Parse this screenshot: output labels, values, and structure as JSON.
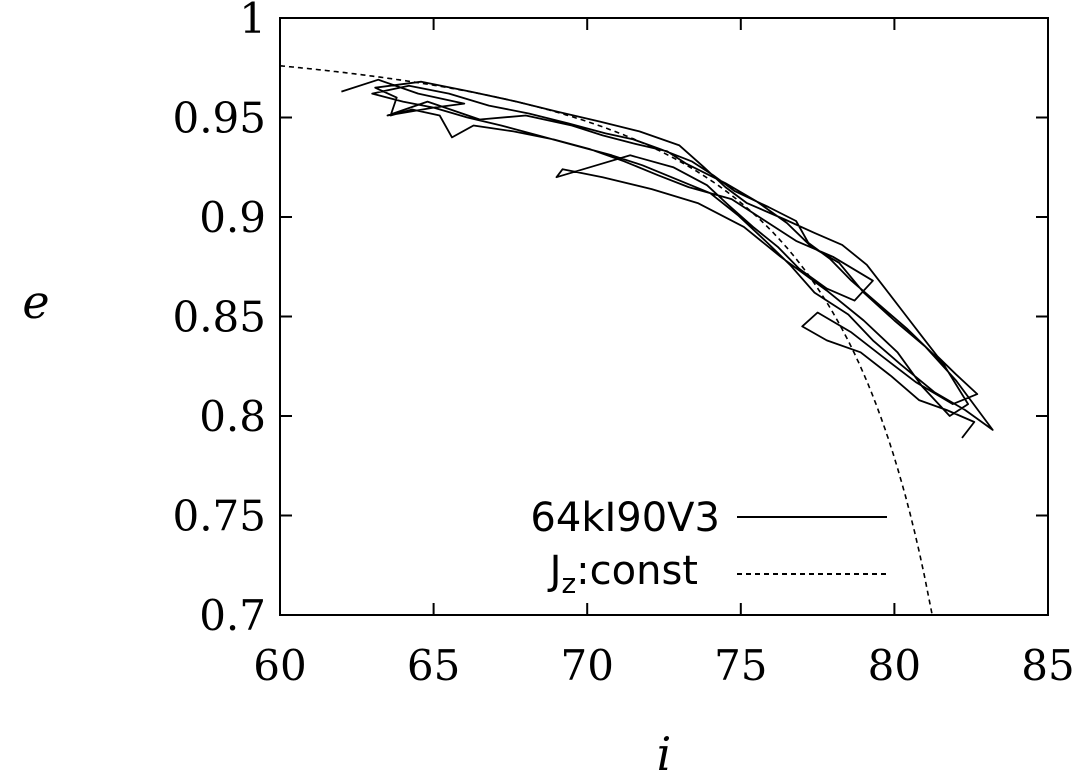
{
  "chart_data": {
    "type": "line",
    "xlabel": "i",
    "ylabel": "e",
    "xlim": [
      60,
      85
    ],
    "ylim": [
      0.7,
      1.0
    ],
    "xticks": [
      "60",
      "65",
      "70",
      "75",
      "80",
      "85"
    ],
    "yticks": [
      "0.7",
      "0.75",
      "0.8",
      "0.85",
      "0.9",
      "0.95",
      "1"
    ],
    "grid": false,
    "legend_position": "bottom-right",
    "series": [
      {
        "name": "64kI90V3",
        "style": "solid",
        "color": "#000000",
        "points": [
          [
            62.0,
            0.963
          ],
          [
            63.2,
            0.969
          ],
          [
            64.5,
            0.962
          ],
          [
            66.0,
            0.957
          ],
          [
            65.0,
            0.955
          ],
          [
            63.5,
            0.951
          ],
          [
            64.8,
            0.958
          ],
          [
            66.5,
            0.949
          ],
          [
            68.0,
            0.951
          ],
          [
            69.5,
            0.946
          ],
          [
            70.5,
            0.941
          ],
          [
            71.5,
            0.937
          ],
          [
            72.6,
            0.933
          ],
          [
            73.2,
            0.927
          ],
          [
            74.5,
            0.917
          ],
          [
            75.5,
            0.908
          ],
          [
            76.5,
            0.897
          ],
          [
            77.3,
            0.885
          ],
          [
            78.2,
            0.877
          ],
          [
            79.0,
            0.862
          ],
          [
            80.0,
            0.848
          ],
          [
            81.0,
            0.835
          ],
          [
            82.0,
            0.818
          ],
          [
            83.2,
            0.793
          ],
          [
            82.3,
            0.803
          ],
          [
            81.3,
            0.812
          ],
          [
            80.2,
            0.826
          ],
          [
            79.3,
            0.838
          ],
          [
            78.5,
            0.851
          ],
          [
            77.4,
            0.862
          ],
          [
            76.6,
            0.876
          ],
          [
            75.8,
            0.888
          ],
          [
            74.9,
            0.901
          ],
          [
            74.0,
            0.912
          ],
          [
            72.9,
            0.919
          ],
          [
            71.8,
            0.926
          ],
          [
            70.8,
            0.931
          ],
          [
            69.6,
            0.936
          ],
          [
            68.4,
            0.941
          ],
          [
            67.2,
            0.946
          ],
          [
            66.1,
            0.95
          ],
          [
            65.0,
            0.955
          ],
          [
            64.0,
            0.958
          ],
          [
            63.0,
            0.962
          ],
          [
            64.2,
            0.966
          ],
          [
            65.5,
            0.962
          ],
          [
            66.8,
            0.956
          ],
          [
            68.1,
            0.952
          ],
          [
            69.4,
            0.947
          ],
          [
            70.6,
            0.942
          ],
          [
            71.5,
            0.939
          ],
          [
            72.4,
            0.934
          ],
          [
            73.4,
            0.928
          ],
          [
            74.1,
            0.921
          ],
          [
            74.8,
            0.913
          ],
          [
            75.9,
            0.905
          ],
          [
            76.8,
            0.898
          ],
          [
            77.2,
            0.887
          ],
          [
            77.9,
            0.879
          ],
          [
            78.6,
            0.868
          ],
          [
            79.5,
            0.856
          ],
          [
            80.4,
            0.844
          ],
          [
            81.6,
            0.826
          ],
          [
            82.4,
            0.806
          ],
          [
            81.8,
            0.8
          ],
          [
            80.9,
            0.815
          ],
          [
            80.1,
            0.832
          ],
          [
            79.0,
            0.848
          ],
          [
            77.8,
            0.863
          ],
          [
            76.3,
            0.88
          ],
          [
            75.1,
            0.895
          ],
          [
            73.6,
            0.907
          ],
          [
            72.1,
            0.914
          ],
          [
            70.5,
            0.92
          ],
          [
            69.2,
            0.924
          ],
          [
            69.0,
            0.92
          ],
          [
            70.3,
            0.926
          ],
          [
            71.4,
            0.931
          ],
          [
            72.8,
            0.925
          ],
          [
            73.9,
            0.916
          ],
          [
            74.6,
            0.906
          ],
          [
            75.4,
            0.895
          ],
          [
            76.2,
            0.885
          ],
          [
            76.9,
            0.874
          ],
          [
            77.8,
            0.864
          ],
          [
            78.7,
            0.858
          ],
          [
            79.3,
            0.868
          ],
          [
            78.0,
            0.88
          ],
          [
            76.8,
            0.888
          ],
          [
            75.7,
            0.899
          ],
          [
            74.7,
            0.909
          ],
          [
            73.3,
            0.915
          ],
          [
            72.3,
            0.921
          ],
          [
            71.2,
            0.928
          ],
          [
            70.1,
            0.934
          ],
          [
            68.9,
            0.939
          ],
          [
            67.6,
            0.943
          ],
          [
            66.3,
            0.946
          ],
          [
            65.6,
            0.94
          ],
          [
            65.2,
            0.951
          ],
          [
            64.3,
            0.954
          ],
          [
            63.6,
            0.951
          ],
          [
            63.8,
            0.96
          ],
          [
            63.1,
            0.965
          ],
          [
            64.6,
            0.968
          ],
          [
            66.2,
            0.963
          ],
          [
            67.7,
            0.958
          ],
          [
            69.0,
            0.953
          ],
          [
            70.4,
            0.948
          ],
          [
            71.7,
            0.943
          ],
          [
            73.0,
            0.936
          ],
          [
            73.8,
            0.925
          ],
          [
            74.5,
            0.915
          ],
          [
            75.2,
            0.907
          ],
          [
            76.4,
            0.899
          ],
          [
            77.4,
            0.892
          ],
          [
            78.3,
            0.886
          ],
          [
            79.1,
            0.876
          ],
          [
            79.7,
            0.864
          ],
          [
            80.3,
            0.852
          ],
          [
            80.9,
            0.84
          ],
          [
            81.4,
            0.83
          ],
          [
            82.0,
            0.821
          ],
          [
            82.7,
            0.811
          ],
          [
            81.9,
            0.806
          ],
          [
            80.7,
            0.817
          ],
          [
            79.6,
            0.83
          ],
          [
            78.6,
            0.842
          ],
          [
            77.5,
            0.852
          ],
          [
            77.0,
            0.845
          ],
          [
            77.8,
            0.838
          ],
          [
            78.9,
            0.832
          ],
          [
            79.9,
            0.82
          ],
          [
            80.8,
            0.808
          ],
          [
            81.7,
            0.803
          ],
          [
            82.6,
            0.797
          ],
          [
            82.2,
            0.789
          ]
        ]
      },
      {
        "name": "J_z:const",
        "style": "dashed",
        "color": "#000000",
        "relation": "sqrt(1-e^2) * cos(i) = const"
      }
    ]
  },
  "legend": {
    "entries": [
      {
        "label": "64kI90V3",
        "style": "solid"
      },
      {
        "label_main": "J",
        "label_sub": "z",
        "label_rest": ":const",
        "style": "dashed"
      }
    ]
  }
}
